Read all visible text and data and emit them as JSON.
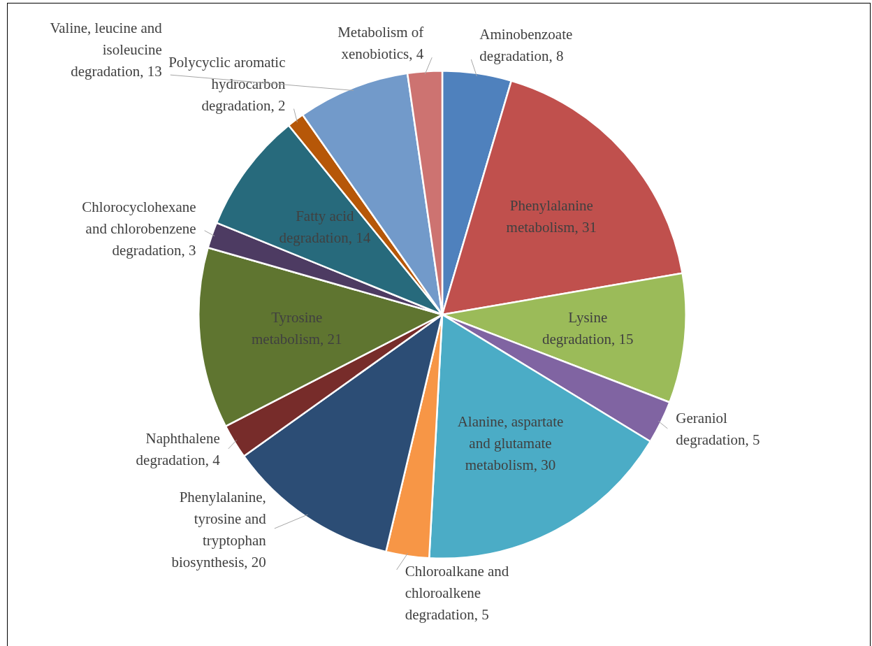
{
  "chart_data": {
    "type": "pie",
    "categories": [
      "Aminobenzoate degradation",
      "Phenylalanine metabolism",
      "Lysine degradation",
      "Geraniol degradation",
      "Alanine, aspartate and glutamate metabolism",
      "Chloroalkane and chloroalkene degradation",
      "Phenylalanine, tyrosine and tryptophan biosynthesis",
      "Naphthalene degradation",
      "Tyrosine metabolism",
      "Chlorocyclohexane and chlorobenzene degradation",
      "Fatty acid degradation",
      "Polycyclic aromatic hydrocarbon degradation",
      "Valine, leucine and isoleucine degradation",
      "Metabolism of xenobiotics"
    ],
    "values": [
      8,
      31,
      15,
      5,
      30,
      5,
      20,
      4,
      21,
      3,
      14,
      2,
      13,
      4
    ],
    "colors": [
      "#4f81bd",
      "#c0504d",
      "#9bbb59",
      "#8064a2",
      "#4bacc6",
      "#f79646",
      "#2c4d75",
      "#772c2a",
      "#5f7530",
      "#4d3b62",
      "#276a7c",
      "#b65708",
      "#729aca",
      "#cd7371"
    ],
    "value_labels": [
      ", 8",
      ", 31",
      ", 15",
      ", 5",
      ", 30",
      ", 5",
      ", 20",
      ", 4",
      ", 21",
      ", 3",
      ", 14",
      ", 2",
      ", 13",
      ", 4"
    ],
    "legend": false
  }
}
